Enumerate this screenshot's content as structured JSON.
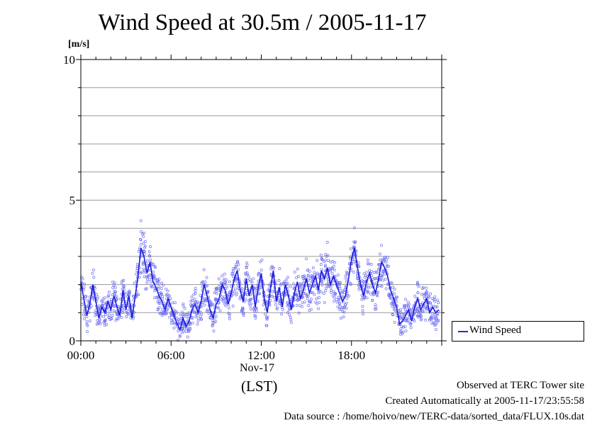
{
  "chart_data": {
    "type": "line",
    "title": "Wind Speed at 30.5m / 2005-11-17",
    "ylabel": "[m/s]",
    "xlabel": "(LST)",
    "date_label": "Nov-17",
    "xlim": [
      0,
      24
    ],
    "ylim": [
      0,
      10
    ],
    "x_ticks": [
      {
        "value": 0,
        "label": "00:00"
      },
      {
        "value": 6,
        "label": "06:00"
      },
      {
        "value": 12,
        "label": "12:00"
      },
      {
        "value": 18,
        "label": "18:00"
      }
    ],
    "y_ticks": [
      {
        "value": 0,
        "label": "0"
      },
      {
        "value": 5,
        "label": "5"
      },
      {
        "value": 10,
        "label": "10"
      }
    ],
    "grid": true,
    "legend_position": "bottom-right outside",
    "colors": {
      "line": "#1a1ae0",
      "points": "#6f6ff0"
    },
    "series": [
      {
        "name": "Wind Speed",
        "x": [
          0.0,
          0.2,
          0.4,
          0.6,
          0.8,
          1.0,
          1.2,
          1.4,
          1.6,
          1.8,
          2.0,
          2.2,
          2.4,
          2.6,
          2.8,
          3.0,
          3.2,
          3.4,
          3.6,
          3.8,
          4.0,
          4.2,
          4.4,
          4.6,
          4.8,
          5.0,
          5.2,
          5.4,
          5.6,
          5.8,
          6.0,
          6.2,
          6.4,
          6.6,
          6.8,
          7.0,
          7.2,
          7.4,
          7.6,
          7.8,
          8.0,
          8.2,
          8.4,
          8.6,
          8.8,
          9.0,
          9.2,
          9.4,
          9.6,
          9.8,
          10.0,
          10.2,
          10.4,
          10.6,
          10.8,
          11.0,
          11.2,
          11.4,
          11.6,
          11.8,
          12.0,
          12.2,
          12.4,
          12.6,
          12.8,
          13.0,
          13.2,
          13.4,
          13.6,
          13.8,
          14.0,
          14.2,
          14.4,
          14.6,
          14.8,
          15.0,
          15.2,
          15.4,
          15.6,
          15.8,
          16.0,
          16.2,
          16.4,
          16.6,
          16.8,
          17.0,
          17.2,
          17.4,
          17.6,
          17.8,
          18.0,
          18.2,
          18.4,
          18.6,
          18.8,
          19.0,
          19.2,
          19.4,
          19.6,
          19.8,
          20.0,
          20.2,
          20.4,
          20.6,
          20.8,
          21.0,
          21.2,
          21.4,
          21.6,
          21.8,
          22.0,
          22.2,
          22.4,
          22.6,
          22.8,
          23.0,
          23.2,
          23.4,
          23.6,
          23.8
        ],
        "values": [
          2.1,
          1.5,
          0.9,
          1.3,
          2.0,
          1.4,
          0.8,
          1.2,
          1.0,
          1.4,
          1.1,
          1.6,
          1.2,
          0.9,
          1.8,
          1.1,
          1.6,
          0.8,
          1.5,
          2.3,
          3.3,
          3.0,
          2.4,
          2.8,
          2.1,
          1.9,
          1.6,
          1.4,
          1.1,
          1.5,
          1.2,
          0.9,
          0.6,
          0.4,
          0.8,
          0.5,
          0.7,
          1.1,
          1.3,
          1.0,
          1.4,
          2.0,
          1.6,
          1.1,
          0.8,
          1.3,
          1.5,
          2.0,
          1.8,
          1.3,
          1.7,
          2.2,
          2.5,
          1.8,
          1.4,
          2.2,
          1.6,
          2.0,
          1.2,
          1.9,
          2.4,
          1.5,
          1.0,
          1.8,
          2.5,
          1.4,
          1.9,
          1.2,
          2.0,
          1.6,
          1.1,
          1.7,
          2.1,
          1.5,
          1.8,
          2.2,
          1.7,
          2.0,
          2.3,
          1.8,
          2.5,
          2.2,
          2.6,
          2.0,
          2.3,
          2.0,
          1.7,
          1.4,
          1.6,
          2.2,
          2.9,
          3.3,
          2.6,
          2.0,
          1.6,
          2.1,
          2.4,
          2.0,
          1.7,
          2.2,
          2.8,
          2.6,
          2.3,
          1.8,
          1.5,
          1.2,
          0.6,
          0.7,
          0.9,
          1.1,
          0.7,
          1.2,
          1.5,
          1.1,
          1.3,
          1.5,
          1.0,
          1.2,
          1.0,
          1.1
        ]
      }
    ]
  }
}
